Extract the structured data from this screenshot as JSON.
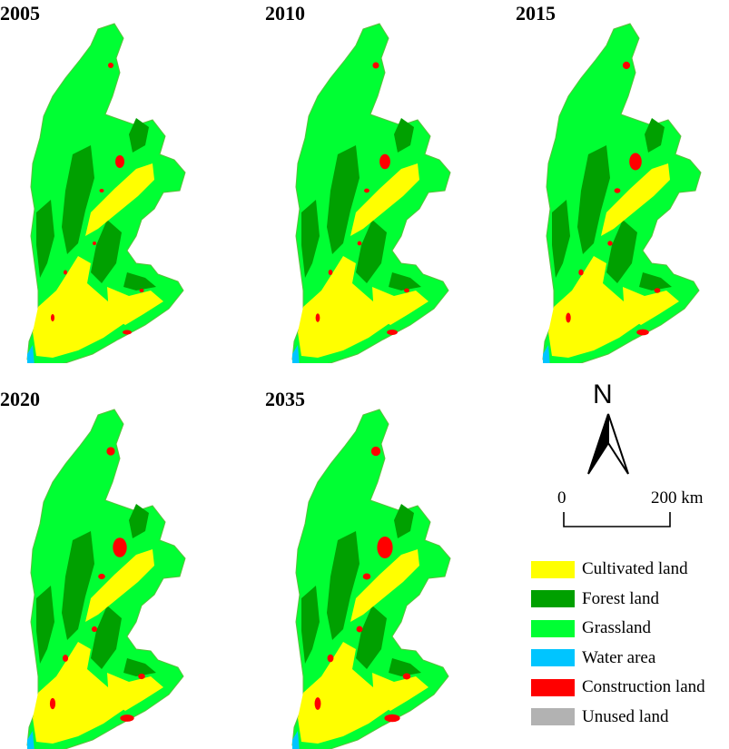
{
  "panels": [
    {
      "year": "2005"
    },
    {
      "year": "2010"
    },
    {
      "year": "2015"
    },
    {
      "year": "2020"
    },
    {
      "year": "2035"
    }
  ],
  "north_arrow": {
    "label": "N"
  },
  "scale_bar": {
    "start": "0",
    "end": "200 km"
  },
  "legend": {
    "items": [
      {
        "label": "Cultivated land",
        "color": "#ffff00"
      },
      {
        "label": "Forest land",
        "color": "#00a000"
      },
      {
        "label": "Grassland",
        "color": "#00ff33"
      },
      {
        "label": "Water area",
        "color": "#00c5ff"
      },
      {
        "label": "Construction land",
        "color": "#ff0000"
      },
      {
        "label": "Unused land",
        "color": "#b2b2b2"
      }
    ]
  },
  "colors": {
    "cultivated": "#ffff00",
    "forest": "#00a000",
    "grassland": "#00ff33",
    "water": "#00c5ff",
    "construction": "#ff0000"
  }
}
